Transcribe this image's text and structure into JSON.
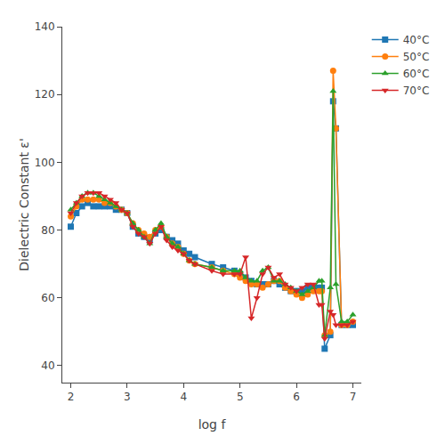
{
  "chart_data": {
    "type": "line",
    "x": [
      2.0,
      2.1,
      2.2,
      2.3,
      2.4,
      2.5,
      2.6,
      2.7,
      2.8,
      2.9,
      3.0,
      3.1,
      3.2,
      3.3,
      3.4,
      3.5,
      3.6,
      3.7,
      3.8,
      3.9,
      4.0,
      4.1,
      4.2,
      4.5,
      4.7,
      4.9,
      5.0,
      5.1,
      5.2,
      5.3,
      5.4,
      5.5,
      5.6,
      5.7,
      5.8,
      5.9,
      6.0,
      6.1,
      6.2,
      6.3,
      6.4,
      6.45,
      6.5,
      6.6,
      6.65,
      6.7,
      6.8,
      6.9,
      7.0
    ],
    "series": [
      {
        "name": "40°C",
        "marker": "square",
        "values": [
          81,
          85,
          87,
          88,
          87,
          87,
          87,
          87,
          86,
          86,
          85,
          81,
          79,
          78,
          77,
          79,
          80,
          78,
          77,
          76,
          74,
          73,
          72,
          70,
          69,
          68,
          67,
          66,
          65,
          64,
          64,
          64,
          65,
          64,
          63,
          62,
          62,
          62,
          63,
          63,
          63,
          63,
          45,
          49,
          118,
          110,
          52,
          52,
          52
        ]
      },
      {
        "name": "50°C",
        "marker": "circle",
        "values": [
          84,
          87,
          89,
          89,
          89,
          89,
          88,
          88,
          87,
          86,
          85,
          82,
          80,
          79,
          78,
          80,
          81,
          78,
          76,
          75,
          73,
          71,
          70,
          69,
          68,
          67,
          66,
          65,
          64,
          64,
          63,
          64,
          65,
          65,
          63,
          62,
          61,
          60,
          61,
          62,
          62,
          62,
          49,
          50,
          127,
          110,
          52,
          52,
          53
        ]
      },
      {
        "name": "60°C",
        "marker": "triangle-up",
        "values": [
          86,
          88,
          90,
          91,
          91,
          90,
          89,
          88,
          87,
          86,
          85,
          82,
          80,
          78,
          76,
          80,
          82,
          78,
          76,
          75,
          73,
          71,
          70,
          69,
          68,
          68,
          68,
          66,
          65,
          65,
          68,
          69,
          65,
          65,
          64,
          63,
          62,
          61,
          62,
          63,
          65,
          65,
          49,
          63,
          121,
          64,
          53,
          53,
          55
        ]
      },
      {
        "name": "70°C",
        "marker": "triangle-down",
        "values": [
          85,
          88,
          90,
          91,
          91,
          91,
          90,
          89,
          88,
          86,
          85,
          81,
          79,
          78,
          76,
          79,
          81,
          77,
          75,
          74,
          73,
          71,
          70,
          68,
          67,
          67,
          67,
          72,
          54,
          60,
          67,
          69,
          66,
          67,
          64,
          63,
          62,
          63,
          64,
          64,
          58,
          58,
          48,
          56,
          55,
          52,
          52,
          52,
          53
        ]
      }
    ],
    "xlabel": "log f",
    "ylabel": "Dielectric Constant ε'",
    "xlim": [
      1.85,
      7.15
    ],
    "ylim": [
      35,
      140
    ],
    "xticks": [
      2,
      3,
      4,
      5,
      6,
      7
    ],
    "yticks": [
      40,
      60,
      80,
      100,
      120,
      140
    ],
    "grid": false,
    "legend": "upper right"
  }
}
